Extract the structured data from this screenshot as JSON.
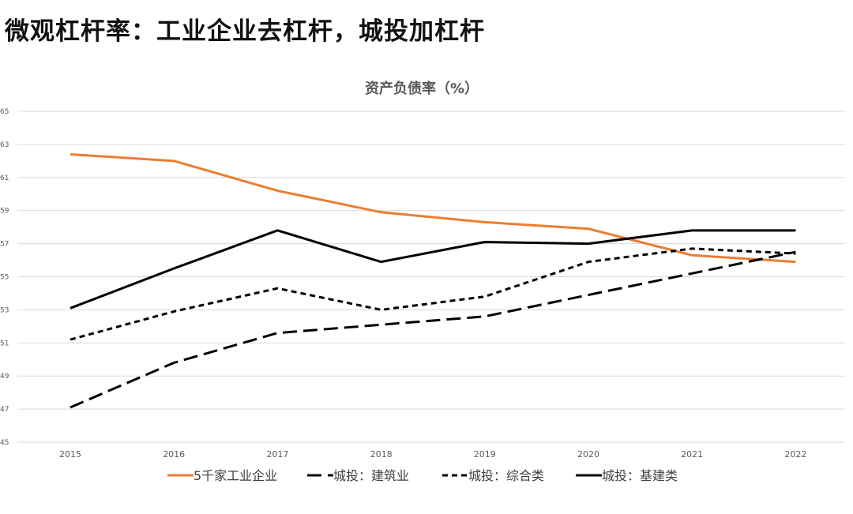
{
  "page": {
    "title": "微观杠杆率：工业企业去杠杆，城投加杠杆"
  },
  "chart_data": {
    "type": "line",
    "title": "资产负债率（%）",
    "xlabel": "",
    "ylabel": "",
    "categories": [
      "2015",
      "2016",
      "2017",
      "2018",
      "2019",
      "2020",
      "2021",
      "2022"
    ],
    "ylim": [
      45,
      65
    ],
    "yticks": [
      45,
      47,
      49,
      51,
      53,
      55,
      57,
      59,
      61,
      63,
      65
    ],
    "grid": true,
    "legend_position": "bottom",
    "series": [
      {
        "name": "5千家工业企业",
        "color": "#ED7D31",
        "dash": "solid",
        "values": [
          62.4,
          62.0,
          60.2,
          58.9,
          58.3,
          57.9,
          56.3,
          55.9
        ]
      },
      {
        "name": "城投：建筑业",
        "color": "#000000",
        "dash": "long-dash",
        "values": [
          47.1,
          49.8,
          51.6,
          52.1,
          52.6,
          53.9,
          55.2,
          56.5
        ]
      },
      {
        "name": "城投：综合类",
        "color": "#000000",
        "dash": "short-dash",
        "values": [
          51.2,
          52.9,
          54.3,
          53.0,
          53.8,
          55.9,
          56.7,
          56.4
        ]
      },
      {
        "name": "城投：基建类",
        "color": "#000000",
        "dash": "solid",
        "values": [
          53.1,
          55.5,
          57.8,
          55.9,
          57.1,
          57.0,
          57.8,
          57.8
        ]
      }
    ]
  }
}
